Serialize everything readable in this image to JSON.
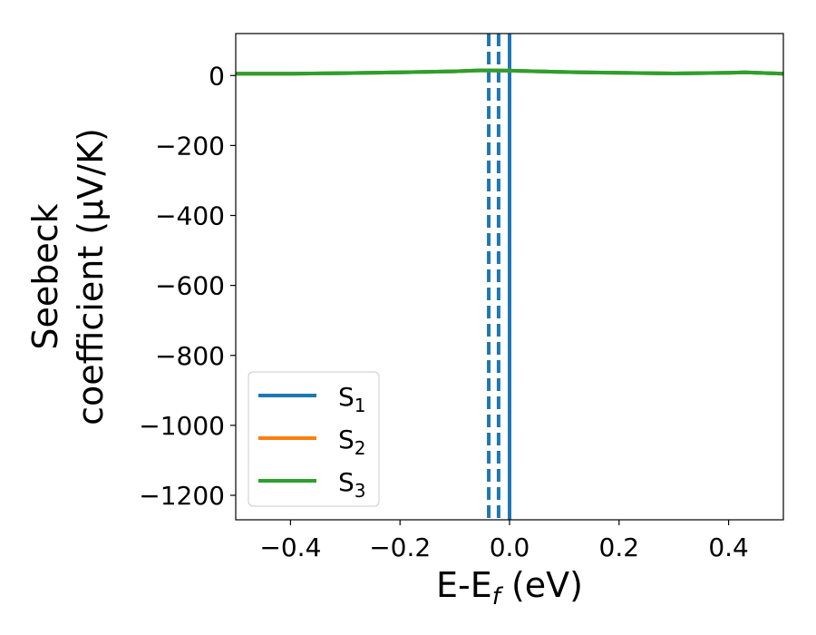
{
  "chart_data": {
    "type": "line",
    "xlabel": "E-E_f (eV)",
    "xlabel_main": "E-E",
    "xlabel_sub": "f",
    "xlabel_unit": " (eV)",
    "ylabel": "Seebeck coefficient (μV/K)",
    "ylabel_line1": "Seebeck",
    "ylabel_line2": "coefficient  (μV/K)",
    "xlim": [
      -0.5,
      0.5
    ],
    "ylim": [
      -1270,
      120
    ],
    "xticks": [
      -0.4,
      -0.2,
      0.0,
      0.2,
      0.4
    ],
    "xtick_labels": [
      "−0.4",
      "−0.2",
      "0.0",
      "0.2",
      "0.4"
    ],
    "yticks": [
      0,
      -200,
      -400,
      -600,
      -800,
      -1000,
      -1200
    ],
    "ytick_labels": [
      "0",
      "−200",
      "−400",
      "−600",
      "−800",
      "−1000",
      "−1200"
    ],
    "grid": false,
    "legend_position": "lower-left",
    "series": [
      {
        "name": "S1",
        "legend_main": "S",
        "legend_sub": "1",
        "color": "#1f77b4",
        "x": [
          -0.5,
          -0.4,
          -0.3,
          -0.2,
          -0.1,
          -0.05,
          0.0,
          0.1,
          0.2,
          0.3,
          0.4,
          0.43,
          0.5
        ],
        "y": [
          5,
          5,
          7,
          9,
          12,
          15,
          14,
          10,
          8,
          6,
          8,
          9,
          5
        ]
      },
      {
        "name": "S2",
        "legend_main": "S",
        "legend_sub": "2",
        "color": "#ff7f0e",
        "x": [
          -0.5,
          -0.4,
          -0.3,
          -0.2,
          -0.1,
          -0.05,
          0.0,
          0.1,
          0.2,
          0.3,
          0.4,
          0.43,
          0.5
        ],
        "y": [
          5,
          5,
          7,
          9,
          12,
          15,
          14,
          10,
          8,
          6,
          8,
          9,
          5
        ]
      },
      {
        "name": "S3",
        "legend_main": "S",
        "legend_sub": "3",
        "color": "#2ca02c",
        "x": [
          -0.5,
          -0.4,
          -0.3,
          -0.2,
          -0.1,
          -0.05,
          0.0,
          0.1,
          0.2,
          0.3,
          0.4,
          0.43,
          0.5
        ],
        "y": [
          5,
          5,
          7,
          9,
          12,
          15,
          14,
          10,
          8,
          6,
          8,
          9,
          5
        ]
      }
    ],
    "vlines": [
      {
        "x": -0.038,
        "color": "#1f77b4",
        "style": "dashed"
      },
      {
        "x": -0.02,
        "color": "#1f77b4",
        "style": "dashed"
      },
      {
        "x": 0.0,
        "color": "#000000",
        "style": "dashed"
      },
      {
        "x": 0.0,
        "color": "#1f77b4",
        "style": "solid"
      }
    ]
  }
}
